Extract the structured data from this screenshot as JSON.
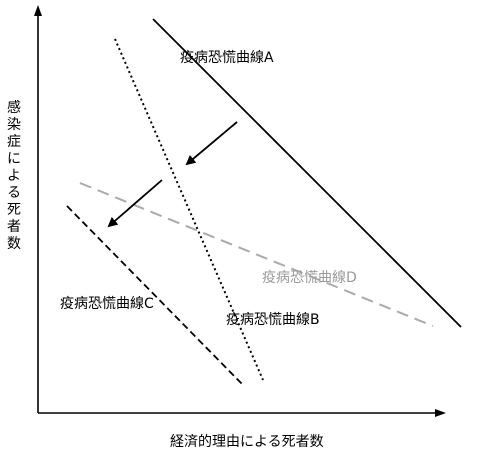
{
  "axes": {
    "y_label": "感染症による死者数",
    "x_label": "経済的理由による死者数"
  },
  "curves": {
    "a": {
      "label": "疫病恐慌曲線A",
      "style": "solid",
      "color": "#000000"
    },
    "b": {
      "label": "疫病恐慌曲線B",
      "style": "dotted",
      "color": "#000000"
    },
    "c": {
      "label": "疫病恐慌曲線C",
      "style": "dashed",
      "color": "#000000"
    },
    "d": {
      "label": "疫病恐慌曲線D",
      "style": "long-dashed",
      "color": "#aaaaaa"
    }
  },
  "arrows": {
    "count": 2,
    "direction": "down-left"
  }
}
